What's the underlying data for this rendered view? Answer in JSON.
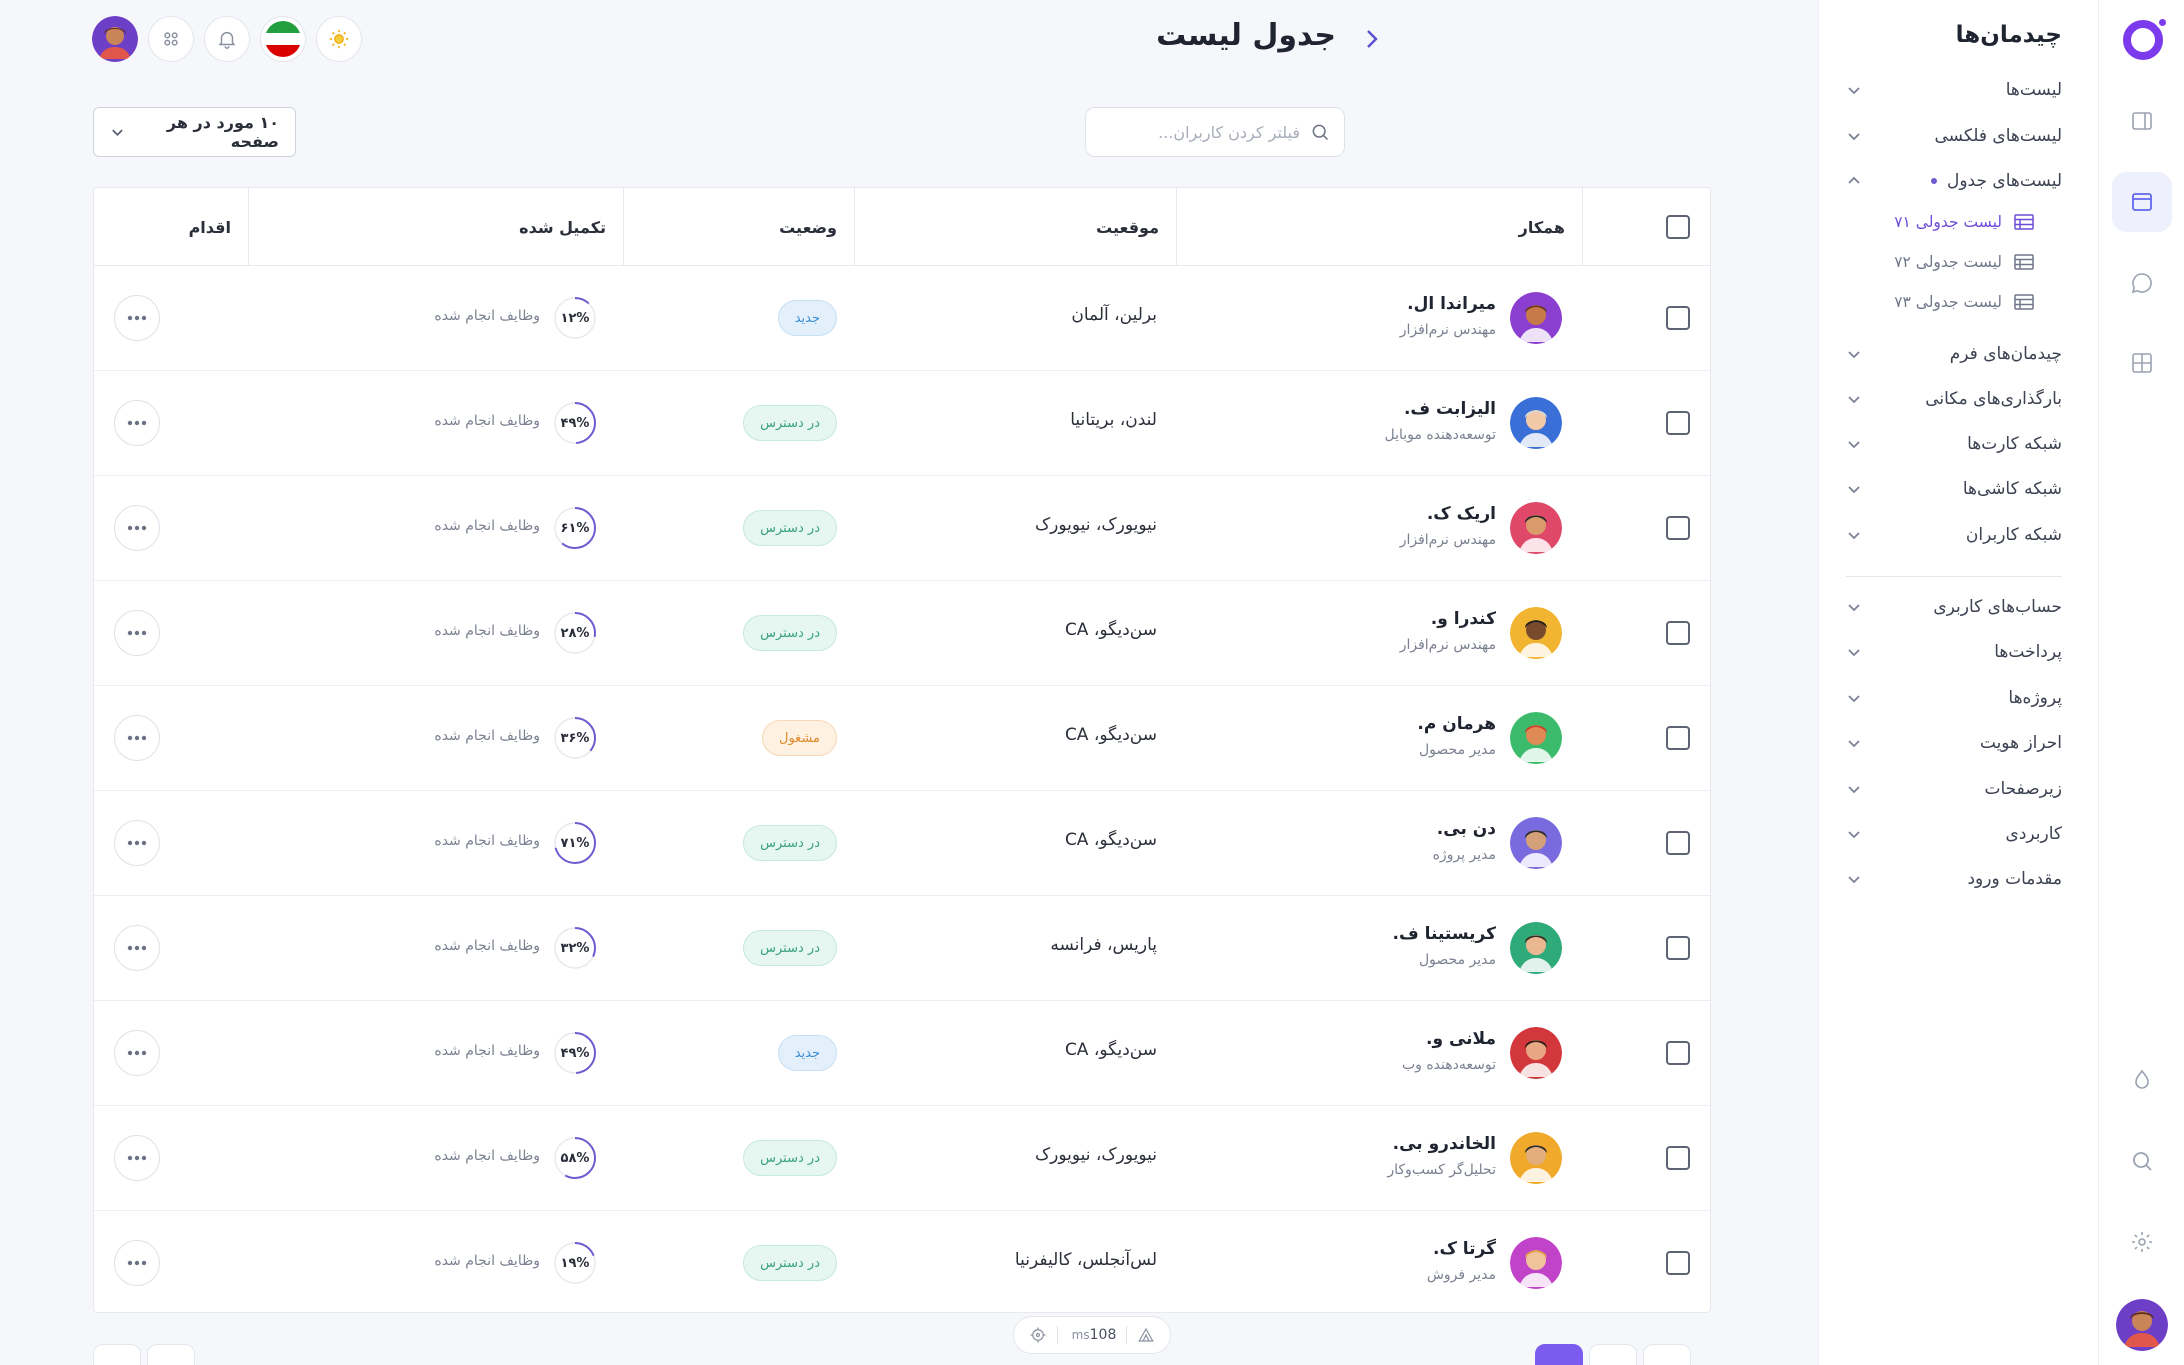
{
  "page": {
    "title": "جدول لیست"
  },
  "toolbar": {
    "search_placeholder": "فیلتر کردن کاربران...",
    "per_page_label": "۱۰ مورد در هر صفحه"
  },
  "menu": {
    "title": "چیدمان‌ها",
    "items": [
      {
        "label": "لیست‌ها"
      },
      {
        "label": "لیست‌های فلکسی"
      },
      {
        "label": "لیست‌های جدول"
      },
      {
        "label": "چیدمان‌های فرم"
      },
      {
        "label": "بارگذاری‌های مکانی"
      },
      {
        "label": "شبکه کارت‌ها"
      },
      {
        "label": "شبکه کاشی‌ها"
      },
      {
        "label": "شبکه کاربران"
      },
      {
        "label": "حساب‌های کاربری"
      },
      {
        "label": "پرداخت‌ها"
      },
      {
        "label": "پروژه‌ها"
      },
      {
        "label": "احراز هویت"
      },
      {
        "label": "زیرصفحات"
      },
      {
        "label": "کاربردی"
      },
      {
        "label": "مقدمات ورود"
      }
    ],
    "sub_items": [
      {
        "label": "لیست جدولی ۷۱"
      },
      {
        "label": "لیست جدولی ۷۲"
      },
      {
        "label": "لیست جدولی ۷۳"
      }
    ]
  },
  "table": {
    "headers": {
      "collaborator": "همکار",
      "location": "موقعیت",
      "status": "وضعیت",
      "completed": "تکمیل شده",
      "action": "اقدام"
    },
    "tasks_label": "وظایف انجام شده",
    "rows": [
      {
        "name": "میراندا ال.",
        "role": "مهندس نرم‌افزار",
        "location": "برلین، آلمان",
        "status": "جدید",
        "status_type": "new",
        "progress_label": "۱۲%",
        "progress": 12
      },
      {
        "name": "الیزابت ف.",
        "role": "توسعه‌دهنده موبایل",
        "location": "لندن، بریتانیا",
        "status": "در دسترس",
        "status_type": "avail",
        "progress_label": "۴۹%",
        "progress": 49
      },
      {
        "name": "اریک ک.",
        "role": "مهندس نرم‌افزار",
        "location": "نیویورک، نیویورک",
        "status": "در دسترس",
        "status_type": "avail",
        "progress_label": "۶۱%",
        "progress": 61
      },
      {
        "name": "کندرا و.",
        "role": "مهندس نرم‌افزار",
        "location": "سن‌دیگو، CA",
        "status": "در دسترس",
        "status_type": "avail",
        "progress_label": "۲۸%",
        "progress": 28
      },
      {
        "name": "هرمان م.",
        "role": "مدیر محصول",
        "location": "سن‌دیگو، CA",
        "status": "مشغول",
        "status_type": "busy",
        "progress_label": "۳۶%",
        "progress": 36
      },
      {
        "name": "دن بی.",
        "role": "مدیر پروژه",
        "location": "سن‌دیگو، CA",
        "status": "در دسترس",
        "status_type": "avail",
        "progress_label": "۷۱%",
        "progress": 71
      },
      {
        "name": "کریستینا ف.",
        "role": "مدیر محصول",
        "location": "پاریس، فرانسه",
        "status": "در دسترس",
        "status_type": "avail",
        "progress_label": "۳۲%",
        "progress": 32
      },
      {
        "name": "ملانی و.",
        "role": "توسعه‌دهنده وب",
        "location": "سن‌دیگو، CA",
        "status": "جدید",
        "status_type": "new",
        "progress_label": "۴۹%",
        "progress": 49
      },
      {
        "name": "الخاندرو بی.",
        "role": "تحلیل‌گر کسب‌وکار",
        "location": "نیویورک، نیویورک",
        "status": "در دسترس",
        "status_type": "avail",
        "progress_label": "۵۸%",
        "progress": 58
      },
      {
        "name": "گرتا ک.",
        "role": "مدیر فروش",
        "location": "لس‌آنجلس، کالیفرنیا",
        "status": "در دسترس",
        "status_type": "avail",
        "progress_label": "۱۹%",
        "progress": 19
      }
    ]
  },
  "perf": {
    "value": "108",
    "unit": "ms"
  },
  "colors": {
    "accent": "#7c3aed",
    "progress": "#6d5bd0"
  }
}
